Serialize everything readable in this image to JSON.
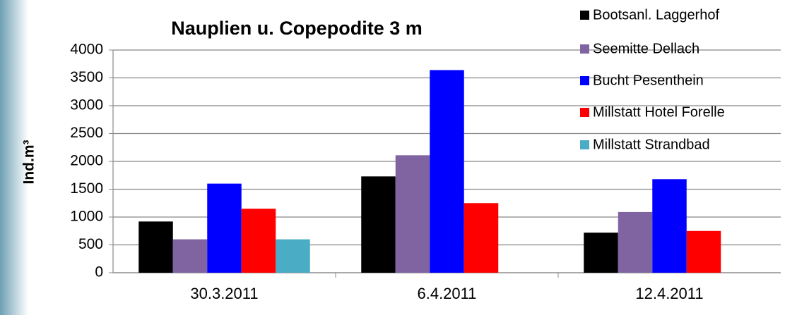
{
  "chart_data": {
    "type": "bar",
    "title": "Nauplien u. Copepodite 3 m",
    "y_label": "Ind.m³",
    "categories": [
      "30.3.2011",
      "6.4.2011",
      "12.4.2011"
    ],
    "series": [
      {
        "name": "Bootsanl. Laggerhof",
        "color": "#000000",
        "values": [
          920,
          1730,
          720
        ]
      },
      {
        "name": "Seemitte Dellach",
        "color": "#8064a2",
        "values": [
          600,
          2110,
          1090
        ]
      },
      {
        "name": "Bucht Pesenthein",
        "color": "#0000ff",
        "values": [
          1600,
          3640,
          1680
        ]
      },
      {
        "name": "Millstatt Hotel Forelle",
        "color": "#ff0000",
        "values": [
          1150,
          1250,
          750
        ]
      },
      {
        "name": "Millstatt Strandbad",
        "color": "#4bacc6",
        "values": [
          600,
          null,
          null
        ]
      }
    ],
    "ylim": [
      0,
      4000
    ],
    "yticks": [
      0,
      500,
      1000,
      1500,
      2000,
      2500,
      3000,
      3500,
      4000
    ],
    "grid": true,
    "legend": "right"
  }
}
